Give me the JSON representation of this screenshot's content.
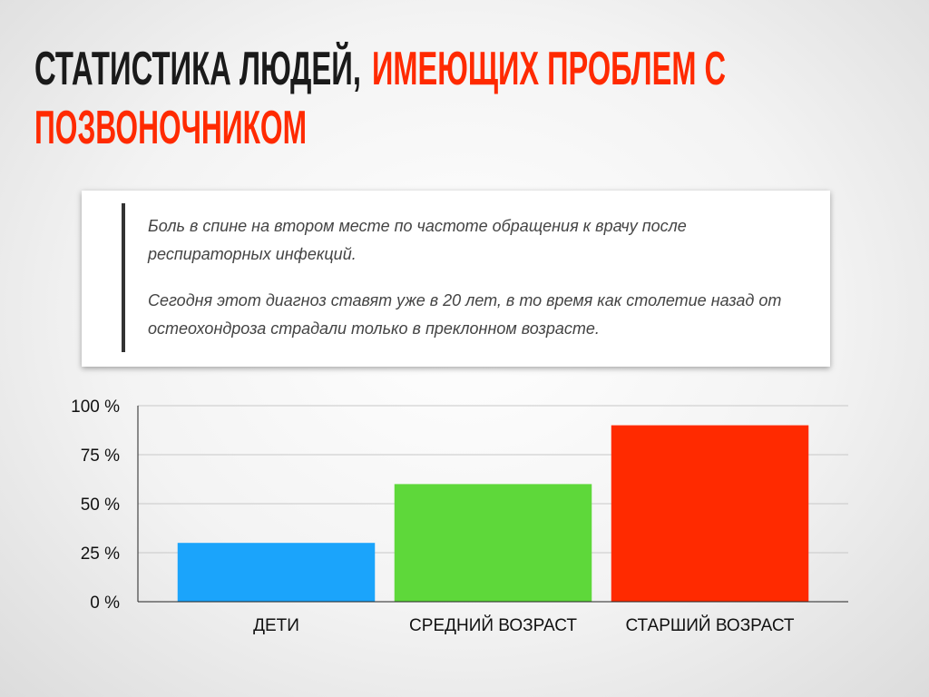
{
  "header": {
    "title": [
      "СТАТИСТИКА ЛЮДЕЙ,",
      "ИМЕЮЩИХ ПРОБЛЕМ С",
      "ПОЗВОНОЧНИКОМ"
    ]
  },
  "quote": {
    "paragraphs": [
      "Боль в спине на втором месте по частоте обращения к врачу после респираторных инфекций.",
      "Сегодня этот диагноз ставят уже в 20 лет, в то время как столетие назад от остеохондроза страдали только в преклонном возрасте."
    ]
  },
  "chart_data": {
    "type": "bar",
    "categories": [
      "ДЕТИ",
      "СРЕДНИЙ ВОЗРАСТ",
      "СТАРШИЙ ВОЗРАСТ"
    ],
    "values": [
      30,
      60,
      90
    ],
    "colors": [
      "#1ba4fb",
      "#5ed83a",
      "#ff2a00"
    ],
    "ylim": [
      0,
      100
    ],
    "yticks": [
      {
        "value": 0,
        "label": "0 %"
      },
      {
        "value": 25,
        "label": "25 %"
      },
      {
        "value": 50,
        "label": "50 %"
      },
      {
        "value": 75,
        "label": "75 %"
      },
      {
        "value": 100,
        "label": "100 %"
      }
    ],
    "grid": true
  }
}
